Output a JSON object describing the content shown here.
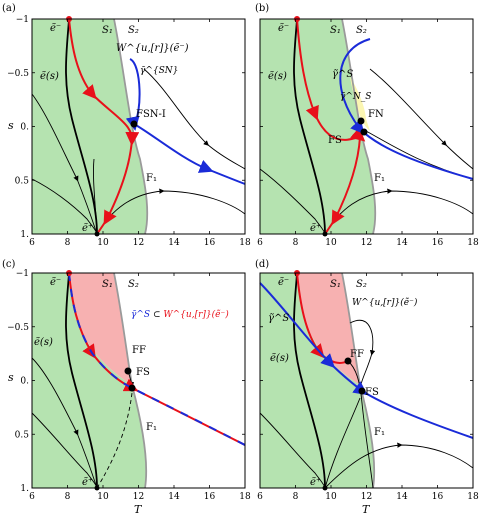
{
  "chart_data": [
    {
      "type": "phase-portrait",
      "panel_label": "(a)",
      "xlim": [
        6,
        18
      ],
      "ylim": [
        -1,
        1
      ],
      "y_inverted": true,
      "x_ticks": [
        6,
        8,
        10,
        12,
        14,
        16,
        18
      ],
      "y_ticks": [
        -1,
        -0.5,
        0,
        0.5,
        1
      ],
      "x_tick_labels": [
        "6",
        "8",
        "10",
        "12",
        "14",
        "16",
        "18"
      ],
      "y_tick_labels": [
        "−1",
        "−0.5",
        "0.",
        "0.5",
        "1."
      ],
      "xlabel": "",
      "ylabel": "s",
      "region_labels": [
        "S₁",
        "S₂",
        "F₁"
      ],
      "curve_labels": [
        "W^{u,[r]}(ẽ⁻)",
        "γ̃^{SN}",
        "ẽ(s)"
      ],
      "point_labels": [
        "ẽ⁻",
        "ẽ⁺",
        "FSN-I"
      ],
      "red_label": "W^{u,[r]}(ẽ⁻)",
      "blue_label": "γ̃^{SN}"
    },
    {
      "type": "phase-portrait",
      "panel_label": "(b)",
      "xlim": [
        6,
        18
      ],
      "ylim": [
        -1,
        1
      ],
      "y_inverted": true,
      "x_ticks": [
        6,
        8,
        10,
        12,
        14,
        16,
        18
      ],
      "y_ticks": [
        -1,
        -0.5,
        0,
        0.5,
        1
      ],
      "x_tick_labels": [
        "6",
        "8",
        "10",
        "12",
        "14",
        "16",
        "18"
      ],
      "y_tick_labels": [
        "−1",
        "−0.5",
        "0.",
        "0.5",
        "1."
      ],
      "xlabel": "",
      "ylabel": "s",
      "region_labels": [
        "S₁",
        "S₂",
        "F₁"
      ],
      "curve_labels": [
        "γ̃^S",
        "γ̃^N_S",
        "ẽ(s)"
      ],
      "point_labels": [
        "ẽ⁻",
        "ẽ⁺",
        "FN",
        "FS"
      ],
      "blue_label": "γ̃^S"
    },
    {
      "type": "phase-portrait",
      "panel_label": "(c)",
      "xlim": [
        6,
        18
      ],
      "ylim": [
        -1,
        1
      ],
      "y_inverted": true,
      "x_ticks": [
        6,
        8,
        10,
        12,
        14,
        16,
        18
      ],
      "y_ticks": [
        -1,
        -0.5,
        0,
        0.5,
        1
      ],
      "x_tick_labels": [
        "6",
        "8",
        "10",
        "12",
        "14",
        "16",
        "18"
      ],
      "y_tick_labels": [
        "−1",
        "−0.5",
        "0.",
        "0.5",
        "1."
      ],
      "xlabel": "T",
      "ylabel": "s",
      "region_labels": [
        "S₁",
        "S₂",
        "F₁"
      ],
      "curve_labels": [
        "γ̃^S ⊂ W^{u,[r]}(ẽ⁻)",
        "ẽ(s)"
      ],
      "point_labels": [
        "ẽ⁻",
        "ẽ⁺",
        "FF",
        "FS"
      ],
      "blue_label": "γ̃^S",
      "subset_label": "⊂",
      "red_label": "W^{u,[r]}(ẽ⁻)"
    },
    {
      "type": "phase-portrait",
      "panel_label": "(d)",
      "xlim": [
        6,
        18
      ],
      "ylim": [
        -1,
        1
      ],
      "y_inverted": true,
      "x_ticks": [
        6,
        8,
        10,
        12,
        14,
        16,
        18
      ],
      "y_ticks": [
        -1,
        -0.5,
        0,
        0.5,
        1
      ],
      "x_tick_labels": [
        "6",
        "8",
        "10",
        "12",
        "14",
        "16",
        "18"
      ],
      "y_tick_labels": [
        "−1",
        "−0.5",
        "0.",
        "0.5",
        "1."
      ],
      "xlabel": "T",
      "ylabel": "",
      "region_labels": [
        "S₁",
        "S₂",
        "F₁"
      ],
      "curve_labels": [
        "W^{u,[r]}(ẽ⁻)",
        "γ̃^S",
        "ẽ(s)"
      ],
      "point_labels": [
        "ẽ⁻",
        "ẽ⁺",
        "FF",
        "FS"
      ],
      "red_label": "W^{u,[r]}(ẽ⁻)",
      "blue_label": "γ̃^S"
    }
  ],
  "colors": {
    "green_region": "#b5e3b0",
    "pink_region": "#f7b1b1",
    "yellow_region": "#fbf6b2",
    "fold_curve": "#9a9a9a",
    "red_curve": "#e8101a",
    "blue_curve": "#1a2bd8",
    "black_curve": "#000000"
  }
}
